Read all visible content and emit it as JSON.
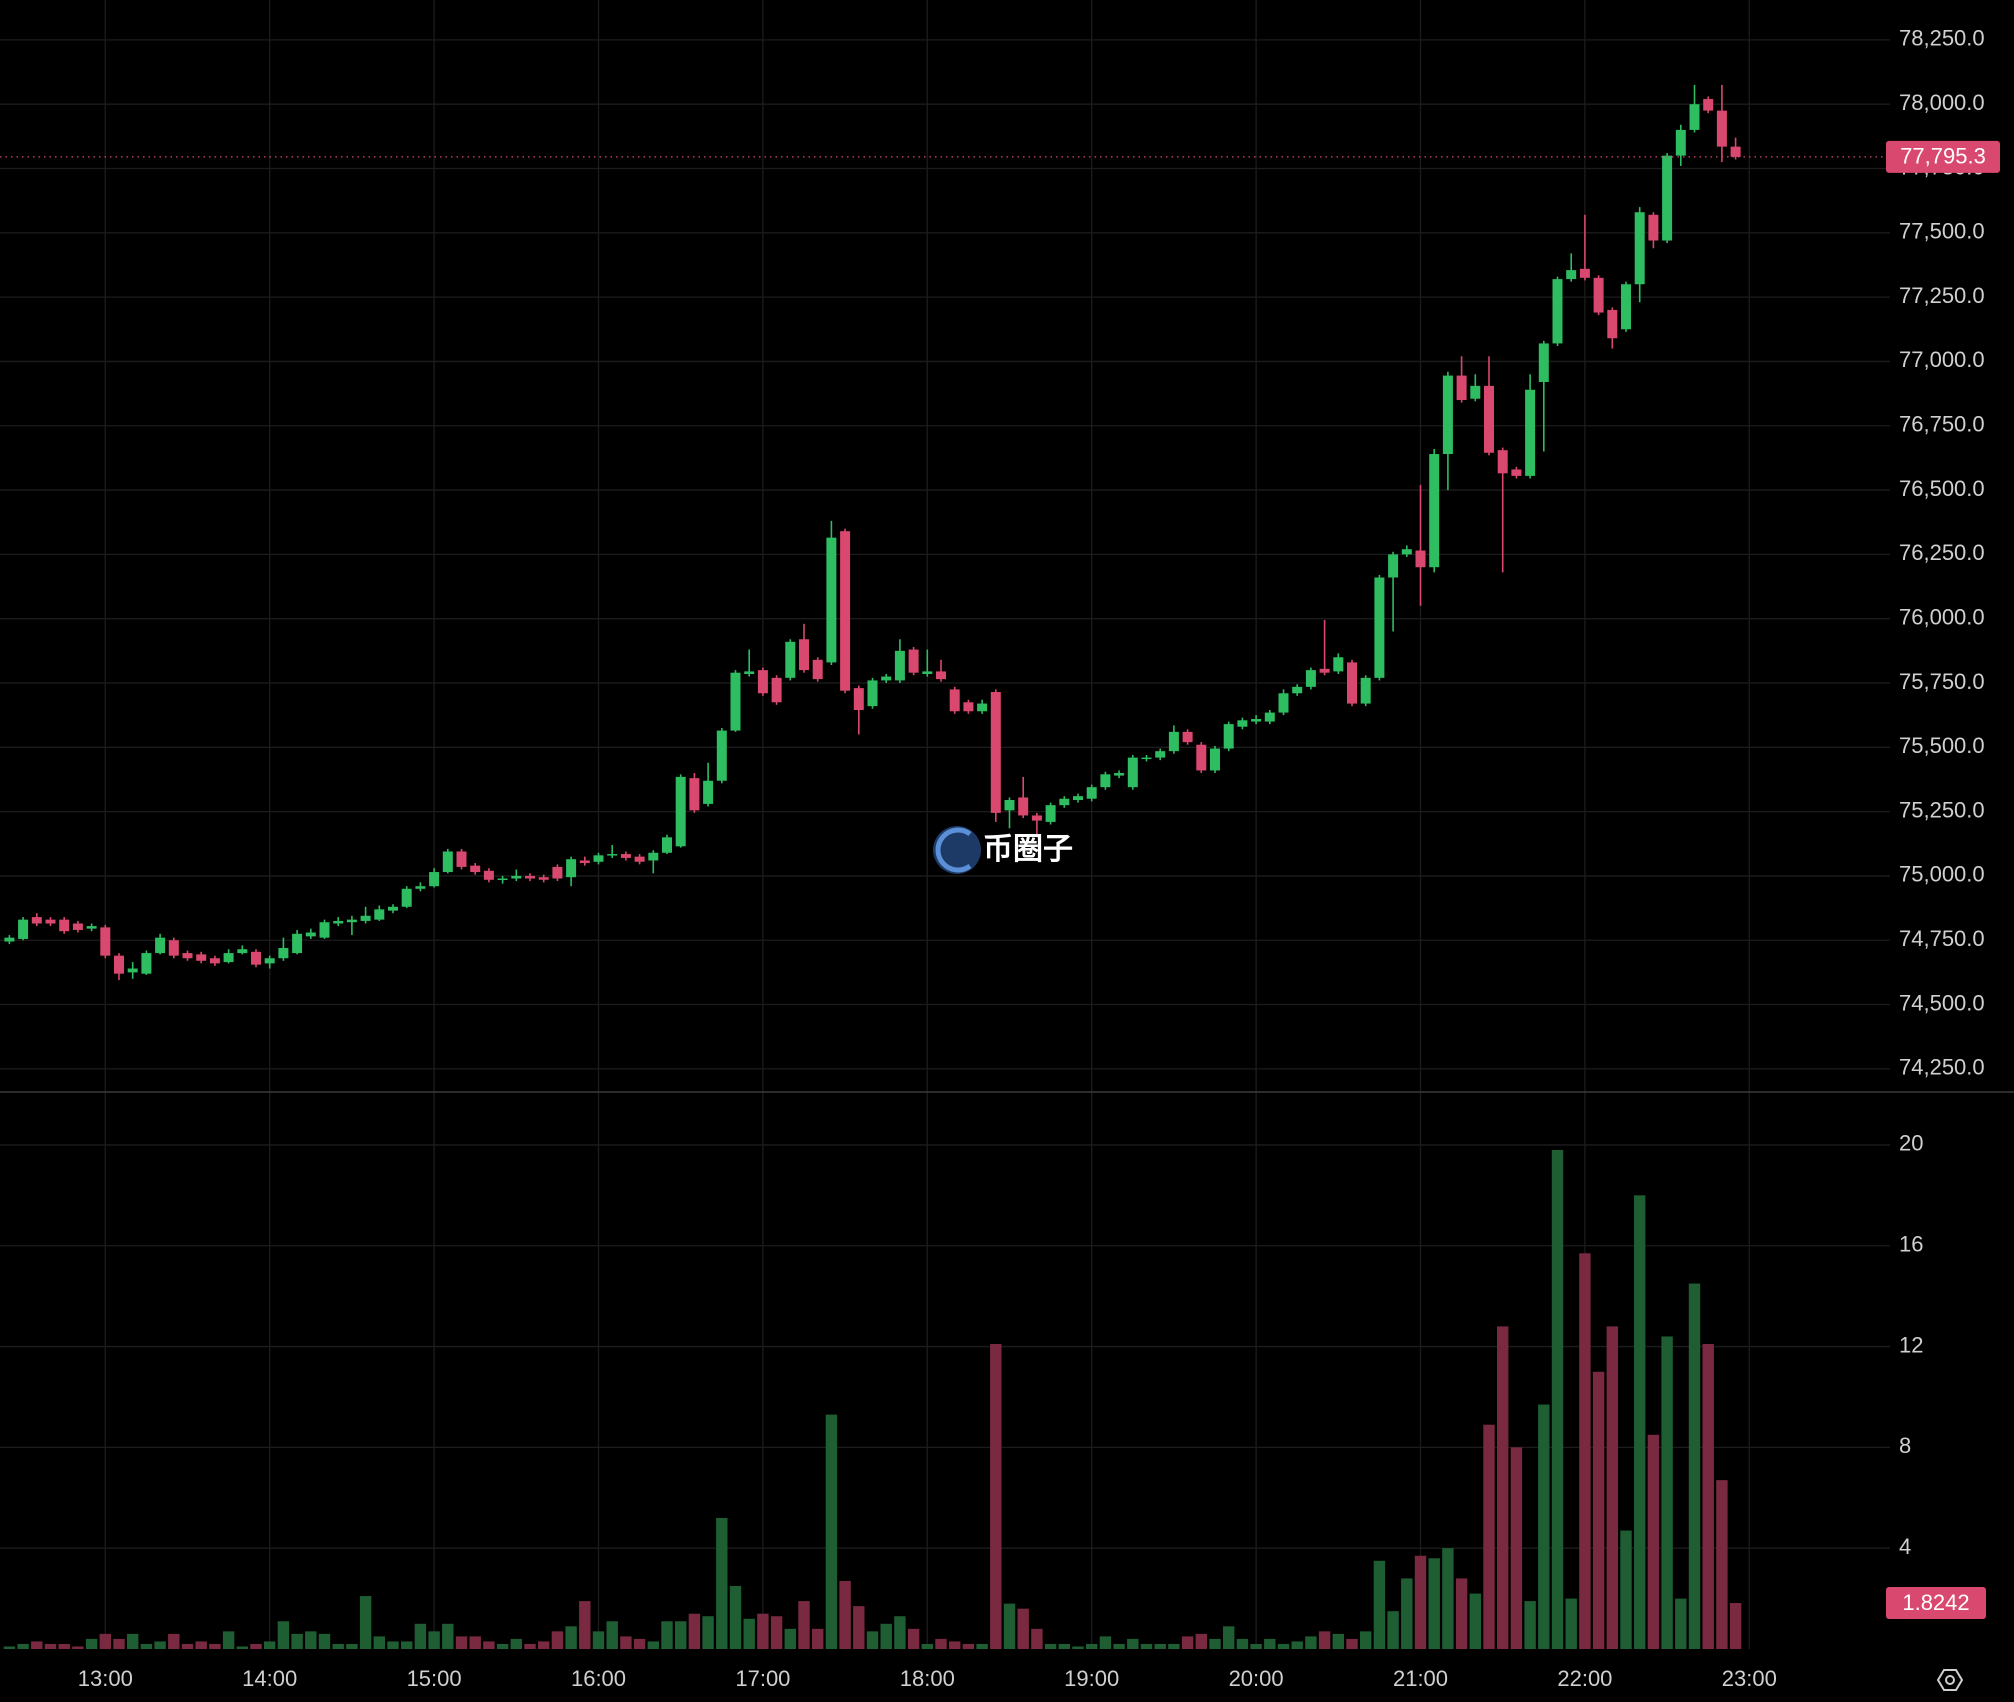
{
  "chart_data": [
    {
      "type": "candlestick",
      "watermark": "币圈子",
      "x": [
        "12:25",
        "12:30",
        "12:35",
        "12:40",
        "12:45",
        "12:50",
        "12:55",
        "13:00",
        "13:05",
        "13:10",
        "13:15",
        "13:20",
        "13:25",
        "13:30",
        "13:35",
        "13:40",
        "13:45",
        "13:50",
        "13:55",
        "14:00",
        "14:05",
        "14:10",
        "14:15",
        "14:20",
        "14:25",
        "14:30",
        "14:35",
        "14:40",
        "14:45",
        "14:50",
        "14:55",
        "15:00",
        "15:05",
        "15:10",
        "15:15",
        "15:20",
        "15:25",
        "15:30",
        "15:35",
        "15:40",
        "15:45",
        "15:50",
        "15:55",
        "16:00",
        "16:05",
        "16:10",
        "16:15",
        "16:20",
        "16:25",
        "16:30",
        "16:35",
        "16:40",
        "16:45",
        "16:50",
        "16:55",
        "17:00",
        "17:05",
        "17:10",
        "17:15",
        "17:20",
        "17:25",
        "17:30",
        "17:35",
        "17:40",
        "17:45",
        "17:50",
        "17:55",
        "18:00",
        "18:05",
        "18:10",
        "18:15",
        "18:20",
        "18:25",
        "18:30",
        "18:35",
        "18:40",
        "18:45",
        "18:50",
        "18:55",
        "19:00",
        "19:05",
        "19:10",
        "19:15",
        "19:20",
        "19:25",
        "19:30",
        "19:35",
        "19:40",
        "19:45",
        "19:50",
        "19:55",
        "20:00",
        "20:05",
        "20:10",
        "20:15",
        "20:20",
        "20:25",
        "20:30",
        "20:35",
        "20:40",
        "20:45",
        "20:50",
        "20:55",
        "21:00",
        "21:05",
        "21:10",
        "21:15",
        "21:20",
        "21:25",
        "21:30",
        "21:35",
        "21:40",
        "21:45",
        "21:50",
        "21:55",
        "22:00",
        "22:05",
        "22:10",
        "22:15",
        "22:20",
        "22:25",
        "22:30",
        "22:35",
        "22:40",
        "22:45",
        "22:50",
        "22:55"
      ],
      "open": [
        74745,
        74755,
        74840,
        74830,
        74830,
        74815,
        74795,
        74800,
        74690,
        74625,
        74620,
        74700,
        74750,
        74700,
        74695,
        74680,
        74665,
        74700,
        74705,
        74660,
        74680,
        74700,
        74765,
        74760,
        74815,
        74820,
        74825,
        74830,
        74865,
        74880,
        74950,
        74960,
        75015,
        75095,
        75040,
        75020,
        74985,
        74990,
        75000,
        74995,
        75035,
        74995,
        75060,
        75055,
        75080,
        75085,
        75075,
        75060,
        75090,
        75115,
        75380,
        75280,
        75370,
        75565,
        75785,
        75800,
        75770,
        75770,
        75920,
        75840,
        75830,
        76340,
        75730,
        75660,
        75760,
        75760,
        75880,
        75785,
        75795,
        75725,
        75675,
        75640,
        75715,
        75255,
        75305,
        75235,
        75210,
        75275,
        75295,
        75300,
        75345,
        75390,
        75345,
        75455,
        75460,
        75485,
        75560,
        75510,
        75410,
        75495,
        75580,
        75600,
        75600,
        75635,
        75710,
        75735,
        75805,
        75795,
        75830,
        75670,
        75770,
        76160,
        76250,
        76265,
        76200,
        76640,
        76945,
        76855,
        76905,
        76655,
        76580,
        76555,
        76920,
        77070,
        77320,
        77360,
        77325,
        77200,
        77125,
        77300,
        77570,
        77470,
        77800,
        77900,
        78020,
        77975,
        77835
      ],
      "high": [
        74770,
        74840,
        74855,
        74840,
        74840,
        74825,
        74815,
        74810,
        74700,
        74665,
        74710,
        74775,
        74760,
        74710,
        74705,
        74690,
        74715,
        74730,
        74715,
        74690,
        74760,
        74790,
        74795,
        74830,
        74840,
        74845,
        74880,
        74885,
        74890,
        74960,
        74975,
        75030,
        75105,
        75105,
        75050,
        75030,
        75000,
        75025,
        75010,
        75005,
        75045,
        75075,
        75075,
        75090,
        75120,
        75095,
        75085,
        75100,
        75160,
        75395,
        75400,
        75440,
        75575,
        75800,
        75880,
        75810,
        75780,
        75920,
        75980,
        75850,
        76380,
        76350,
        75740,
        75770,
        75785,
        75920,
        75890,
        75880,
        75840,
        75735,
        75685,
        75685,
        75725,
        75305,
        75385,
        75245,
        75285,
        75310,
        75320,
        75355,
        75405,
        75410,
        75470,
        75470,
        75495,
        75585,
        75570,
        75520,
        75505,
        75600,
        75615,
        75625,
        75645,
        75725,
        75745,
        75810,
        75995,
        75865,
        75840,
        75780,
        76170,
        76260,
        76285,
        76520,
        76660,
        76960,
        77020,
        76950,
        77020,
        76665,
        76590,
        76950,
        77080,
        77330,
        77420,
        77570,
        77335,
        77210,
        77310,
        77600,
        77580,
        77810,
        77920,
        78075,
        78030,
        78075,
        77870
      ],
      "low": [
        74735,
        74750,
        74805,
        74805,
        74775,
        74780,
        74785,
        74680,
        74595,
        74600,
        74615,
        74695,
        74680,
        74670,
        74660,
        74650,
        74660,
        74695,
        74645,
        74640,
        74670,
        74695,
        74755,
        74755,
        74805,
        74770,
        74815,
        74825,
        74855,
        74875,
        74940,
        74955,
        75010,
        75025,
        75005,
        74975,
        74970,
        74980,
        74980,
        74975,
        74980,
        74960,
        75040,
        75045,
        75070,
        75060,
        75045,
        75010,
        75085,
        75110,
        75245,
        75270,
        75360,
        75560,
        75775,
        75700,
        75665,
        75760,
        75790,
        75755,
        75820,
        75710,
        75550,
        75650,
        75750,
        75750,
        75780,
        75775,
        75755,
        75630,
        75630,
        75630,
        75210,
        75185,
        75225,
        75150,
        75200,
        75265,
        75285,
        75290,
        75335,
        75380,
        75335,
        75445,
        75450,
        75475,
        75510,
        75400,
        75400,
        75485,
        75570,
        75590,
        75590,
        75625,
        75700,
        75725,
        75780,
        75785,
        75660,
        75660,
        75760,
        75950,
        76240,
        76050,
        76180,
        76500,
        76840,
        76845,
        76635,
        76180,
        76545,
        76545,
        76650,
        77060,
        77310,
        77315,
        77180,
        77050,
        77115,
        77230,
        77440,
        77460,
        77760,
        77890,
        77965,
        77775,
        77785
      ],
      "close": [
        74760,
        74830,
        74815,
        74815,
        74785,
        74790,
        74805,
        74690,
        74620,
        74640,
        74700,
        74760,
        74690,
        74680,
        74670,
        74660,
        74700,
        74715,
        74655,
        74680,
        74720,
        74775,
        74780,
        74820,
        74825,
        74830,
        74845,
        74870,
        74880,
        74950,
        74960,
        75015,
        75095,
        75035,
        75015,
        74985,
        74990,
        75000,
        74990,
        74985,
        74990,
        75065,
        75050,
        75080,
        75085,
        75070,
        75055,
        75090,
        75150,
        75385,
        75255,
        75370,
        75565,
        75790,
        75795,
        75710,
        75675,
        75910,
        75800,
        75765,
        76315,
        75720,
        75645,
        75760,
        75775,
        75875,
        75790,
        75795,
        75765,
        75640,
        75640,
        75670,
        75245,
        75295,
        75235,
        75215,
        75275,
        75300,
        75310,
        75345,
        75395,
        75400,
        75460,
        75460,
        75485,
        75560,
        75520,
        75410,
        75495,
        75590,
        75605,
        75610,
        75635,
        75710,
        75735,
        75800,
        75790,
        75850,
        75670,
        75770,
        76160,
        76250,
        76270,
        76200,
        76640,
        76945,
        76850,
        76905,
        76645,
        76565,
        76555,
        76890,
        77070,
        77320,
        77355,
        77325,
        77190,
        77090,
        77300,
        77580,
        77470,
        77800,
        77900,
        78000,
        77975,
        77835,
        77795.3
      ],
      "up_color": "#2fbd62",
      "down_color": "#d9486e",
      "last_price": {
        "value": 77795.3,
        "label": "77,795.3"
      },
      "ylim": [
        74160,
        78405
      ],
      "yticks": [
        {
          "value": 74250,
          "label": "74,250.0"
        },
        {
          "value": 74500,
          "label": "74,500.0"
        },
        {
          "value": 74750,
          "label": "74,750.0"
        },
        {
          "value": 75000,
          "label": "75,000.0"
        },
        {
          "value": 75250,
          "label": "75,250.0"
        },
        {
          "value": 75500,
          "label": "75,500.0"
        },
        {
          "value": 75750,
          "label": "75,750.0"
        },
        {
          "value": 76000,
          "label": "76,000.0"
        },
        {
          "value": 76250,
          "label": "76,250.0"
        },
        {
          "value": 76500,
          "label": "76,500.0"
        },
        {
          "value": 76750,
          "label": "76,750.0"
        },
        {
          "value": 77000,
          "label": "77,000.0"
        },
        {
          "value": 77250,
          "label": "77,250.0"
        },
        {
          "value": 77500,
          "label": "77,500.0"
        },
        {
          "value": 77750,
          "label": "77,750.0"
        },
        {
          "value": 78000,
          "label": "78,000.0"
        },
        {
          "value": 78250,
          "label": "78,250.0"
        }
      ],
      "grid": true
    },
    {
      "type": "bar",
      "values": [
        0.1,
        0.2,
        0.3,
        0.2,
        0.2,
        0.1,
        0.4,
        0.6,
        0.4,
        0.6,
        0.2,
        0.3,
        0.6,
        0.2,
        0.3,
        0.2,
        0.7,
        0.1,
        0.2,
        0.3,
        1.1,
        0.6,
        0.7,
        0.6,
        0.2,
        0.2,
        2.1,
        0.5,
        0.3,
        0.3,
        1.0,
        0.7,
        1.0,
        0.5,
        0.5,
        0.3,
        0.2,
        0.4,
        0.2,
        0.3,
        0.7,
        0.9,
        1.9,
        0.7,
        1.1,
        0.5,
        0.4,
        0.3,
        1.1,
        1.1,
        1.4,
        1.3,
        5.2,
        2.5,
        1.2,
        1.4,
        1.3,
        0.8,
        1.9,
        0.8,
        9.3,
        2.7,
        1.7,
        0.7,
        1.0,
        1.3,
        0.8,
        0.2,
        0.4,
        0.3,
        0.2,
        0.2,
        12.1,
        1.8,
        1.6,
        0.8,
        0.2,
        0.2,
        0.1,
        0.2,
        0.5,
        0.2,
        0.4,
        0.2,
        0.2,
        0.2,
        0.5,
        0.6,
        0.4,
        0.9,
        0.4,
        0.2,
        0.4,
        0.2,
        0.3,
        0.5,
        0.7,
        0.6,
        0.4,
        0.7,
        3.5,
        1.5,
        2.8,
        3.7,
        3.6,
        4.0,
        2.8,
        2.2,
        8.9,
        12.8,
        8.0,
        1.9,
        9.7,
        19.8,
        2.0,
        15.7,
        11.0,
        12.8,
        4.7,
        18.0,
        8.5,
        12.4,
        2.0,
        14.5,
        12.1,
        6.7,
        1.8242
      ],
      "up_color": "#1f5e33",
      "down_color": "#7a2a40",
      "ylim": [
        0,
        22.1
      ],
      "yticks": [
        4,
        8,
        12,
        16,
        20
      ],
      "xticks": [
        "13:00",
        "14:00",
        "15:00",
        "16:00",
        "17:00",
        "18:00",
        "19:00",
        "20:00",
        "21:00",
        "22:00",
        "23:00"
      ],
      "grid": true
    }
  ]
}
